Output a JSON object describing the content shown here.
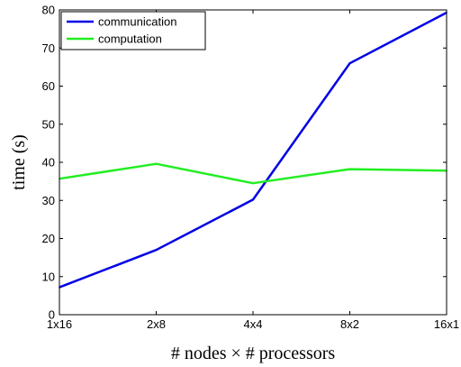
{
  "chart_data": {
    "type": "line",
    "categories": [
      "1x16",
      "2x8",
      "4x4",
      "8x2",
      "16x1"
    ],
    "series": [
      {
        "name": "communication",
        "color": "#0000e6",
        "values": [
          7.2,
          17.0,
          30.2,
          66.0,
          79.3
        ]
      },
      {
        "name": "computation",
        "color": "#22ee22",
        "values": [
          35.7,
          39.6,
          34.5,
          38.2,
          37.8
        ]
      }
    ],
    "yticks": [
      "0",
      "10",
      "20",
      "30",
      "40",
      "50",
      "60",
      "70",
      "80"
    ],
    "ylim": [
      0,
      80
    ],
    "xlabel": "# nodes × # processors",
    "ylabel": "time (s)",
    "legend_position": "top-left",
    "grid": false
  }
}
